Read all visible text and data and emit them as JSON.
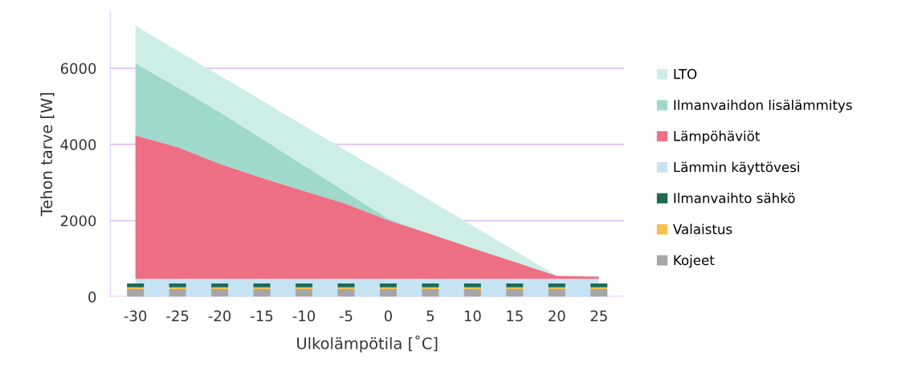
{
  "chart_data": {
    "type": "area",
    "xlabel": "Ulkolämpötila [˚C]",
    "ylabel": "Tehon tarve [W]",
    "categories": [
      "-30",
      "-25",
      "-20",
      "-15",
      "-10",
      "-5",
      "0",
      "5",
      "10",
      "15",
      "20",
      "25"
    ],
    "stacked": true,
    "ylim": [
      0,
      7500
    ],
    "yticks": [
      0,
      2000,
      4000,
      6000
    ],
    "grid": "y",
    "legend": "right",
    "series": [
      {
        "name": "Kojeet",
        "type": "bar",
        "color": "#a6a6a6",
        "values": [
          200,
          200,
          200,
          200,
          200,
          200,
          200,
          200,
          200,
          200,
          200,
          200
        ]
      },
      {
        "name": "Valaistus",
        "type": "bar",
        "color": "#f6c04f",
        "values": [
          50,
          50,
          50,
          50,
          50,
          50,
          50,
          50,
          50,
          50,
          50,
          50
        ]
      },
      {
        "name": "Ilmanvaihto sähkö",
        "type": "bar",
        "color": "#1e6b52",
        "values": [
          100,
          100,
          100,
          100,
          100,
          100,
          100,
          100,
          100,
          100,
          100,
          100
        ]
      },
      {
        "name": "Lämmin käyttövesi",
        "color": "#c5e3f3",
        "values": [
          470,
          470,
          470,
          470,
          470,
          470,
          470,
          470,
          470,
          470,
          470,
          470
        ]
      },
      {
        "name": "Lämpöhäviöt",
        "color": "#ee6f84",
        "values": [
          3770,
          3460,
          3020,
          2650,
          2310,
          1970,
          1540,
          1180,
          810,
          450,
          80,
          60
        ]
      },
      {
        "name": "Ilmanvaihdon lisälämmitys",
        "color": "#9ed9cb",
        "values": [
          1890,
          1570,
          1360,
          1030,
          670,
          310,
          40,
          0,
          0,
          0,
          0,
          0
        ]
      },
      {
        "name": "LTO",
        "color": "#cdeee6",
        "values": [
          990,
          960,
          960,
          1000,
          1040,
          1090,
          1130,
          870,
          590,
          290,
          0,
          0
        ]
      }
    ]
  }
}
